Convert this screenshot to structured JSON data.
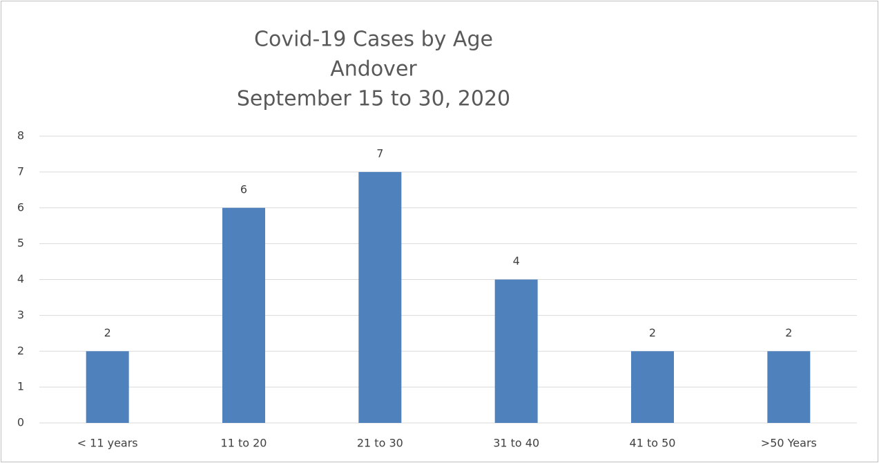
{
  "chart_data": {
    "type": "bar",
    "title": [
      "Covid-19 Cases by Age",
      "Andover",
      "September 15 to 30, 2020"
    ],
    "categories": [
      "< 11 years",
      "11 to 20",
      "21 to 30",
      "31 to 40",
      "41 to 50",
      ">50 Years"
    ],
    "values": [
      2,
      6,
      7,
      4,
      2,
      2
    ],
    "color": "#4f81bd",
    "ylim": [
      0,
      8
    ],
    "yticks": [
      0,
      1,
      2,
      3,
      4,
      5,
      6,
      7,
      8
    ],
    "grid": true,
    "data_labels": true
  }
}
